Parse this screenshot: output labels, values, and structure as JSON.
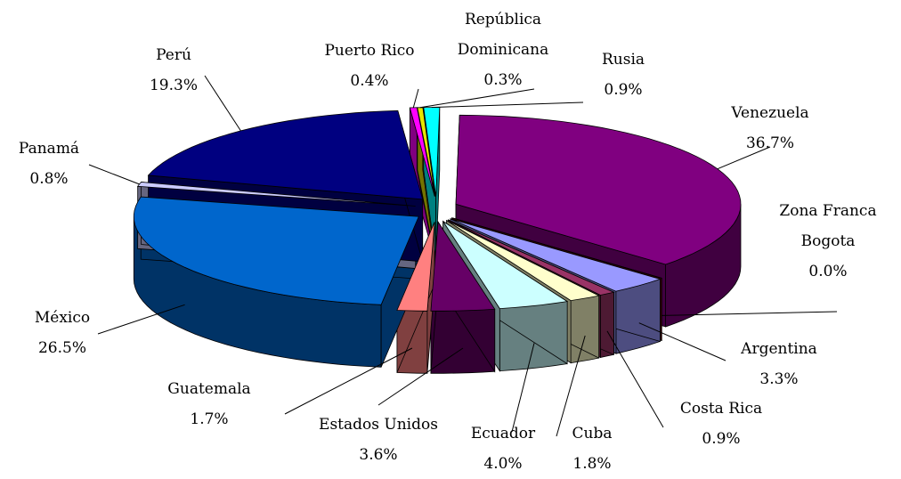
{
  "chart_data": {
    "type": "pie3d",
    "categories": [
      "Puerto Rico",
      "República Dominicana",
      "Rusia",
      "Venezuela",
      "Zona Franca Bogota",
      "Argentina",
      "Costa Rica",
      "Cuba",
      "Ecuador",
      "Estados Unidos",
      "Guatemala",
      "México",
      "Panamá",
      "Perú"
    ],
    "values": [
      0.4,
      0.3,
      0.9,
      36.7,
      0.0,
      3.3,
      0.9,
      1.8,
      4.0,
      3.6,
      1.7,
      26.5,
      0.8,
      19.3
    ],
    "value_labels": [
      "0.4%",
      "0.3%",
      "0.9%",
      "36.7%",
      "0.0%",
      "3.3%",
      "0.9%",
      "1.8%",
      "4.0%",
      "3.6%",
      "1.7%",
      "26.5%",
      "0.8%",
      "19.3%"
    ],
    "colors": [
      "#ff00ff",
      "#e6e600",
      "#00ffff",
      "#800080",
      "#800000",
      "#9999ff",
      "#993366",
      "#ffffcc",
      "#ccffff",
      "#660066",
      "#ff8080",
      "#0066cc",
      "#ccccff",
      "#000080"
    ]
  }
}
